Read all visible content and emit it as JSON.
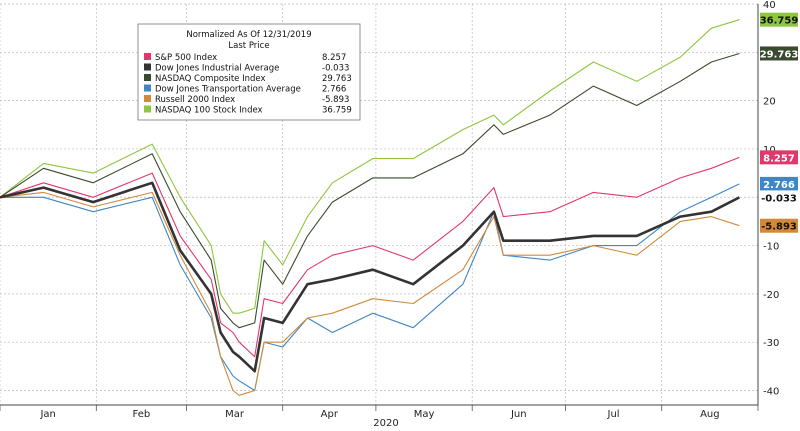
{
  "chart_data": {
    "type": "line",
    "title": "Normalized As Of 12/31/2019",
    "subtitle": "Last Price",
    "xlabel": "2020",
    "ylabel": "",
    "ylim": [
      -43,
      40
    ],
    "yticks": [
      40,
      30,
      20,
      10,
      0,
      -10,
      -20,
      -30,
      -40
    ],
    "months": [
      "Jan",
      "Feb",
      "Mar",
      "Apr",
      "May",
      "Jun",
      "Jul",
      "Aug"
    ],
    "grid": true,
    "legend_position": "top-left",
    "x": [
      "2020-01-01",
      "2020-01-15",
      "2020-01-31",
      "2020-02-19",
      "2020-02-28",
      "2020-03-09",
      "2020-03-12",
      "2020-03-16",
      "2020-03-18",
      "2020-03-23",
      "2020-03-26",
      "2020-04-01",
      "2020-04-09",
      "2020-04-17",
      "2020-04-30",
      "2020-05-13",
      "2020-05-29",
      "2020-06-08",
      "2020-06-11",
      "2020-06-26",
      "2020-07-10",
      "2020-07-24",
      "2020-08-07",
      "2020-08-17",
      "2020-08-26"
    ],
    "series": [
      {
        "name": "S&P 500 Index",
        "color": "#e0386a",
        "last": "8.257",
        "values": [
          0,
          3,
          0,
          5,
          -8,
          -17,
          -26,
          -28,
          -30,
          -33,
          -21,
          -22,
          -15,
          -12,
          -10,
          -13,
          -5,
          2,
          -4,
          -3,
          1,
          0,
          4,
          6,
          8.257
        ]
      },
      {
        "name": "Dow Jones Industrial Average",
        "color": "#333333",
        "last": "-0.033",
        "values": [
          0,
          2,
          -1,
          3,
          -11,
          -20,
          -28,
          -32,
          -33,
          -36,
          -25,
          -26,
          -18,
          -17,
          -15,
          -18,
          -10,
          -3,
          -9,
          -9,
          -8,
          -8,
          -4,
          -3,
          -0.033
        ]
      },
      {
        "name": "NASDAQ Composite Index",
        "color": "#3a4a2e",
        "last": "29.763",
        "values": [
          0,
          6,
          3,
          9,
          -3,
          -13,
          -23,
          -26,
          -27,
          -26,
          -13,
          -18,
          -8,
          -1,
          4,
          4,
          9,
          15,
          13,
          17,
          23,
          19,
          24,
          28,
          29.763
        ]
      },
      {
        "name": "Dow Jones Transportation Average",
        "color": "#3f86c4",
        "last": "2.766",
        "values": [
          0,
          0,
          -3,
          0,
          -14,
          -25,
          -33,
          -37,
          -38,
          -40,
          -30,
          -31,
          -25,
          -28,
          -24,
          -27,
          -18,
          -3,
          -12,
          -13,
          -10,
          -10,
          -3,
          0,
          2.766
        ]
      },
      {
        "name": "Russell 2000 Index",
        "color": "#d28a3a",
        "last": "-5.893",
        "values": [
          0,
          1,
          -2,
          1,
          -12,
          -24,
          -33,
          -40,
          -41,
          -40,
          -30,
          -30,
          -25,
          -24,
          -21,
          -22,
          -15,
          -4,
          -12,
          -12,
          -10,
          -12,
          -5,
          -4,
          -5.893
        ]
      },
      {
        "name": "NASDAQ 100 Stock Index",
        "color": "#8ec63f",
        "last": "36.759",
        "values": [
          0,
          7,
          5,
          11,
          0,
          -10,
          -20,
          -24,
          -24,
          -23,
          -9,
          -14,
          -4,
          3,
          8,
          8,
          14,
          17,
          15,
          22,
          28,
          24,
          29,
          35,
          36.759
        ]
      }
    ]
  }
}
